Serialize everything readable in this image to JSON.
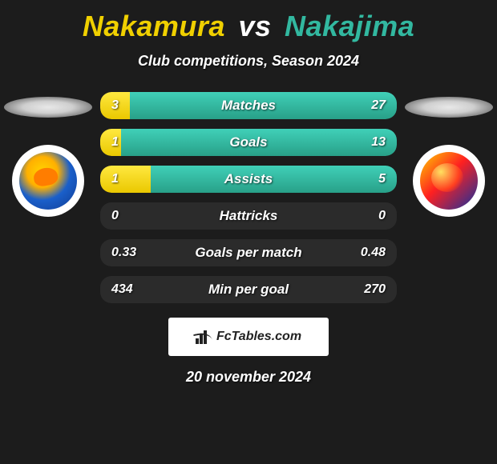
{
  "title": {
    "player1": "Nakamura",
    "vs": "vs",
    "player2": "Nakajima"
  },
  "subtitle": "Club competitions, Season 2024",
  "colors": {
    "player1_bar_top": "#ffe840",
    "player1_bar_bottom": "#eac800",
    "player2_bar_top": "#40d0b8",
    "player2_bar_bottom": "#28a088",
    "row_bg": "#2b2b2b",
    "page_bg": "#1c1c1c",
    "title_p1": "#f0d000",
    "title_p2": "#32b8a0"
  },
  "stats": [
    {
      "label": "Matches",
      "left_val": "3",
      "right_val": "27",
      "left_pct": 10,
      "right_pct": 90
    },
    {
      "label": "Goals",
      "left_val": "1",
      "right_val": "13",
      "left_pct": 7,
      "right_pct": 93
    },
    {
      "label": "Assists",
      "left_val": "1",
      "right_val": "5",
      "left_pct": 17,
      "right_pct": 83
    },
    {
      "label": "Hattricks",
      "left_val": "0",
      "right_val": "0",
      "left_pct": 0,
      "right_pct": 0
    },
    {
      "label": "Goals per match",
      "left_val": "0.33",
      "right_val": "0.48",
      "left_pct": 0,
      "right_pct": 0
    },
    {
      "label": "Min per goal",
      "left_val": "434",
      "right_val": "270",
      "left_pct": 0,
      "right_pct": 0
    }
  ],
  "attribution": "FcTables.com",
  "date": "20 november 2024"
}
